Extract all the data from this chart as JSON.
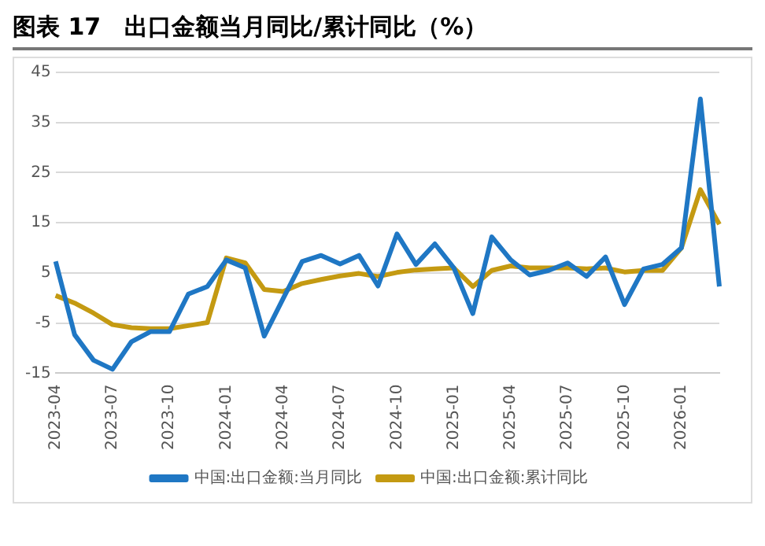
{
  "chart_data": {
    "type": "line",
    "title": "图表 17　出口金额当月同比/累计同比（%）",
    "categories": [
      "2023-04",
      null,
      null,
      "2023-07",
      null,
      null,
      "2023-10",
      null,
      null,
      "2024-01",
      null,
      null,
      "2024-04",
      null,
      null,
      "2024-07",
      null,
      null,
      "2024-10",
      null,
      null,
      "2025-01",
      null,
      null,
      "2025-04",
      null,
      null,
      "2025-07",
      null,
      null,
      "2025-10",
      null,
      null,
      "2026-01",
      null,
      null
    ],
    "series": [
      {
        "name": "中国:出口金额:当月同比",
        "color": "#1f77c4",
        "values": [
          7.3,
          -7.3,
          -12.4,
          -14.2,
          -8.7,
          -6.7,
          -6.7,
          0.8,
          2.3,
          7.6,
          6,
          -7.6,
          -0.1,
          7.3,
          8.5,
          6.8,
          8.5,
          2.4,
          12.8,
          6.7,
          10.8,
          6,
          -3.1,
          12.2,
          7.6,
          4.6,
          5.5,
          7,
          4.3,
          8.2,
          -1.3,
          5.8,
          6.7,
          10,
          39.7,
          2.3
        ]
      },
      {
        "name": "中国:出口金额:累计同比",
        "color": "#c49a12",
        "values": [
          0.5,
          -1,
          -3,
          -5.3,
          -5.9,
          -6.1,
          -6.1,
          -5.5,
          -4.9,
          8,
          7,
          1.7,
          1.3,
          2.9,
          3.7,
          4.4,
          4.9,
          4.3,
          5.1,
          5.6,
          5.8,
          6,
          2.3,
          5.5,
          6.4,
          6,
          6,
          6,
          5.8,
          6,
          5.2,
          5.5,
          5.5,
          10,
          21.6,
          14.7
        ]
      }
    ],
    "ylim": [
      -15,
      45
    ],
    "yticks": [
      -15,
      -5,
      5,
      15,
      25,
      35,
      45
    ],
    "grid": "y",
    "legend": "bottom",
    "marker": "none",
    "line_style": "solid"
  }
}
